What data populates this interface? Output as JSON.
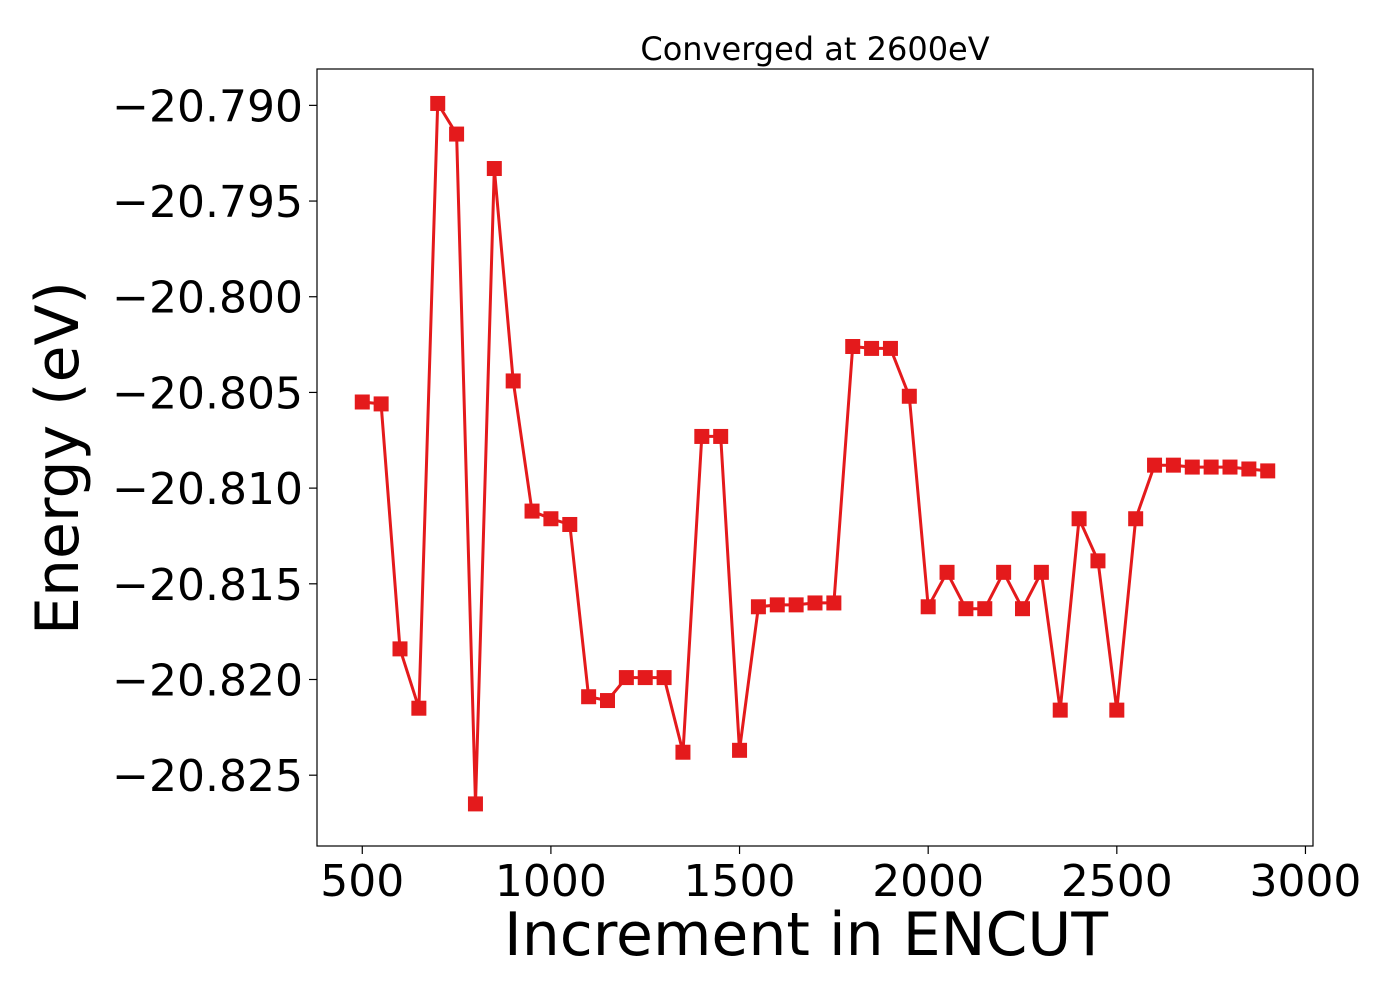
{
  "chart_data": {
    "type": "line",
    "title": "Converged at 2600eV",
    "xlabel": "Increment in ENCUT",
    "ylabel": "Energy (eV)",
    "xlim": [
      380,
      3020
    ],
    "ylim": [
      -20.8287,
      -20.7881
    ],
    "xticks": [
      500,
      1000,
      1500,
      2000,
      2500,
      3000
    ],
    "xtick_labels": [
      "500",
      "1000",
      "1500",
      "2000",
      "2500",
      "3000"
    ],
    "yticks": [
      -20.79,
      -20.795,
      -20.8,
      -20.805,
      -20.81,
      -20.815,
      -20.82,
      -20.825
    ],
    "ytick_labels": [
      "−20.790",
      "−20.795",
      "−20.800",
      "−20.805",
      "−20.810",
      "−20.815",
      "−20.820",
      "−20.825"
    ],
    "grid": false,
    "marker": "square",
    "color": "#e41a1c",
    "series": [
      {
        "x": [
          500,
          550,
          600,
          650,
          700,
          750,
          800,
          850,
          900,
          950,
          1000,
          1050,
          1100,
          1150,
          1200,
          1250,
          1300,
          1350,
          1400,
          1450,
          1500,
          1550,
          1600,
          1650,
          1700,
          1750,
          1800,
          1850,
          1900,
          1950,
          2000,
          2050,
          2100,
          2150,
          2200,
          2250,
          2300,
          2350,
          2400,
          2450,
          2500,
          2550,
          2600,
          2650,
          2700,
          2750,
          2800,
          2850,
          2900
        ],
        "y": [
          -20.8055,
          -20.8056,
          -20.8184,
          -20.8215,
          -20.7899,
          -20.7915,
          -20.8265,
          -20.7933,
          -20.8044,
          -20.8112,
          -20.8116,
          -20.8119,
          -20.8209,
          -20.8211,
          -20.8199,
          -20.8199,
          -20.8199,
          -20.8238,
          -20.8073,
          -20.8073,
          -20.8237,
          -20.8162,
          -20.8161,
          -20.8161,
          -20.816,
          -20.816,
          -20.8026,
          -20.8027,
          -20.8027,
          -20.8052,
          -20.8162,
          -20.8144,
          -20.8163,
          -20.8163,
          -20.8144,
          -20.8163,
          -20.8144,
          -20.8216,
          -20.8116,
          -20.8138,
          -20.8216,
          -20.8116,
          -20.8088,
          -20.8088,
          -20.8089,
          -20.8089,
          -20.8089,
          -20.809,
          -20.8091
        ]
      }
    ]
  }
}
